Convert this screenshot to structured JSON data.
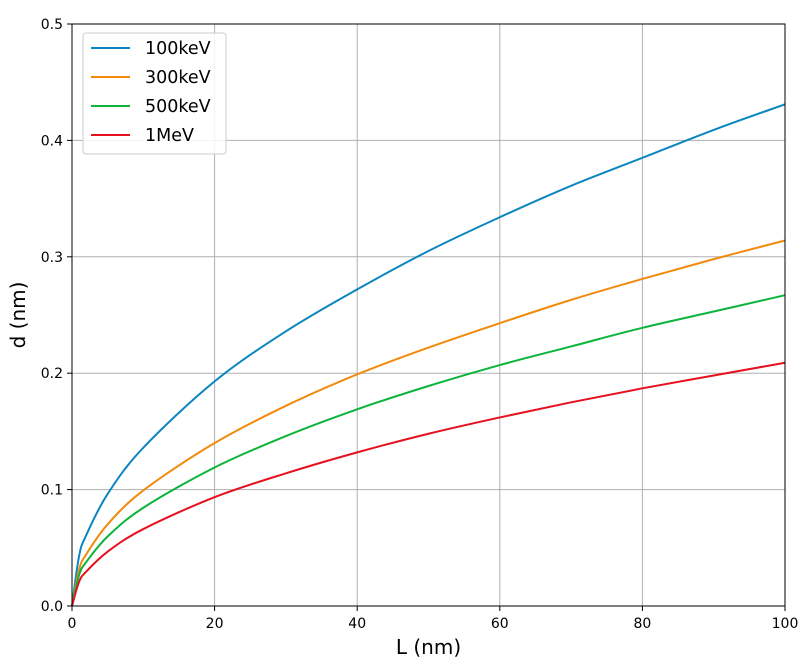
{
  "chart_data": {
    "type": "line",
    "title": "",
    "xlabel": "L (nm)",
    "ylabel": "d (nm)",
    "xlim": [
      0,
      100
    ],
    "ylim": [
      0,
      0.5
    ],
    "xticks": [
      0,
      20,
      40,
      60,
      80,
      100
    ],
    "xtick_labels": [
      "0",
      "20",
      "40",
      "60",
      "80",
      "100"
    ],
    "yticks": [
      0,
      0.1,
      0.2,
      0.3,
      0.4,
      0.5
    ],
    "ytick_labels": [
      "0.0",
      "0.1",
      "0.2",
      "0.3",
      "0.4",
      "0.5"
    ],
    "grid": true,
    "legend_position": "top-left",
    "series": [
      {
        "name": "100keV",
        "color": "#0c86c0",
        "x": [
          0,
          1,
          2,
          5,
          10,
          20,
          30,
          40,
          50,
          60,
          70,
          80,
          90,
          100
        ],
        "y": [
          0,
          0.0431,
          0.0609,
          0.0963,
          0.136,
          0.193,
          0.236,
          0.272,
          0.305,
          0.334,
          0.361,
          0.385,
          0.409,
          0.431
        ]
      },
      {
        "name": "300keV",
        "color": "#f28a0c",
        "x": [
          0,
          1,
          2,
          5,
          10,
          20,
          30,
          40,
          50,
          60,
          70,
          80,
          90,
          100
        ],
        "y": [
          0,
          0.0314,
          0.0444,
          0.0702,
          0.0993,
          0.14,
          0.172,
          0.199,
          0.222,
          0.243,
          0.263,
          0.281,
          0.298,
          0.314
        ]
      },
      {
        "name": "500keV",
        "color": "#0cb43c",
        "x": [
          0,
          1,
          2,
          5,
          10,
          20,
          30,
          40,
          50,
          60,
          70,
          80,
          90,
          100
        ],
        "y": [
          0,
          0.0267,
          0.0378,
          0.0597,
          0.0844,
          0.119,
          0.146,
          0.169,
          0.189,
          0.207,
          0.223,
          0.239,
          0.253,
          0.267
        ]
      },
      {
        "name": "1MeV",
        "color": "#e6101e",
        "x": [
          0,
          1,
          2,
          5,
          10,
          20,
          30,
          40,
          50,
          60,
          70,
          80,
          90,
          100
        ],
        "y": [
          0,
          0.0209,
          0.0296,
          0.0467,
          0.0661,
          0.0935,
          0.114,
          0.132,
          0.148,
          0.162,
          0.175,
          0.187,
          0.198,
          0.209
        ]
      }
    ]
  }
}
